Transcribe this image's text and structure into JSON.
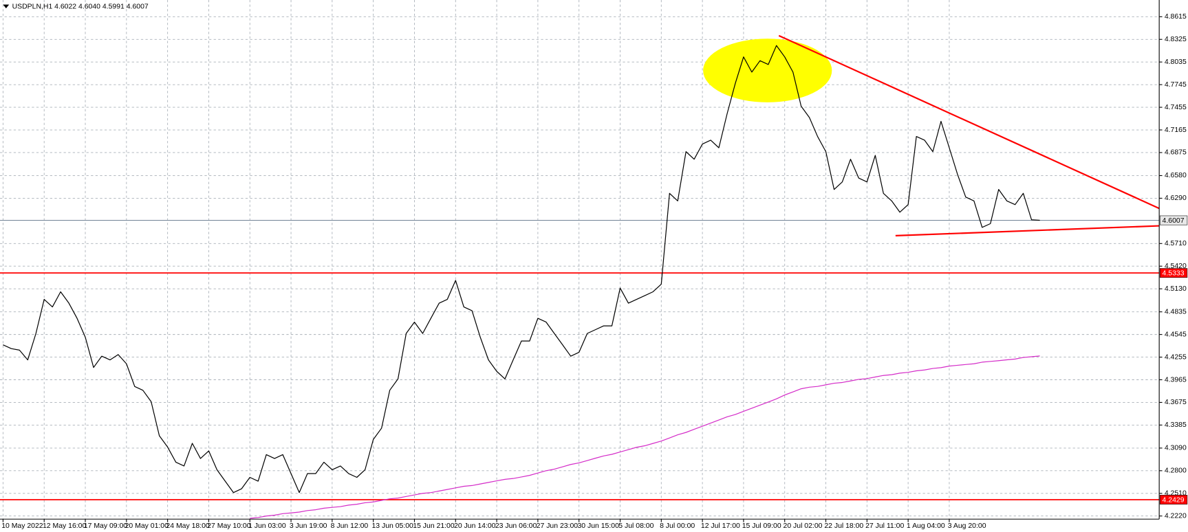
{
  "chart_data": {
    "type": "line",
    "title": "USDPLN,H1  4.6022 4.6040 4.5991 4.6007",
    "categories": [
      "10 May 2022",
      null,
      null,
      null,
      null,
      "12 May 16:00",
      null,
      null,
      null,
      null,
      "17 May 09:00",
      null,
      null,
      null,
      null,
      "20 May 01:00",
      null,
      null,
      null,
      null,
      "24 May 18:00",
      null,
      null,
      null,
      null,
      "27 May 10:00",
      null,
      null,
      null,
      null,
      "1 Jun 03:00",
      null,
      null,
      null,
      null,
      "3 Jun 19:00",
      null,
      null,
      null,
      null,
      "8 Jun 12:00",
      null,
      null,
      null,
      null,
      "13 Jun 05:00",
      null,
      null,
      null,
      null,
      "15 Jun 21:00",
      null,
      null,
      null,
      null,
      "20 Jun 14:00",
      null,
      null,
      null,
      null,
      "23 Jun 06:00",
      null,
      null,
      null,
      null,
      "27 Jun 23:00",
      null,
      null,
      null,
      null,
      "30 Jun 15:00",
      null,
      null,
      null,
      null,
      "5 Jul 08:00",
      null,
      null,
      null,
      null,
      "8 Jul 00:00",
      null,
      null,
      null,
      null,
      "12 Jul 17:00",
      null,
      null,
      null,
      null,
      "15 Jul 09:00",
      null,
      null,
      null,
      null,
      "20 Jul 02:00",
      null,
      null,
      null,
      null,
      "22 Jul 18:00",
      null,
      null,
      null,
      null,
      "27 Jul 11:00",
      null,
      null,
      null,
      null,
      "1 Aug 04:00",
      null,
      null,
      null,
      null,
      "3 Aug 20:00",
      null,
      null,
      null,
      null,
      null,
      null,
      null,
      null,
      null,
      null,
      null,
      null,
      null,
      null,
      null,
      null,
      null,
      null,
      null,
      null,
      null,
      null,
      null,
      null,
      null
    ],
    "series": [
      {
        "color": "#000000",
        "values": [
          4.4413,
          4.4364,
          4.4345,
          4.4219,
          4.4558,
          4.4995,
          4.4898,
          4.5092,
          4.4946,
          4.4752,
          4.451,
          4.4122,
          4.4267,
          4.4219,
          4.4287,
          4.417,
          4.3879,
          4.383,
          4.3685,
          4.3248,
          4.3103,
          4.2909,
          4.286,
          4.3151,
          4.2957,
          4.3054,
          4.2812,
          4.2666,
          4.252,
          4.2569,
          4.2715,
          4.2666,
          4.3006,
          4.2957,
          4.3006,
          4.2763,
          4.252,
          4.2763,
          4.2763,
          4.2909,
          4.2812,
          4.286,
          4.2763,
          4.2715,
          4.2812,
          4.32,
          4.3345,
          4.383,
          4.3976,
          4.4558,
          4.4704,
          4.4558,
          4.4752,
          4.4946,
          4.4995,
          4.5238,
          4.4898,
          4.4849,
          4.451,
          4.4219,
          4.4073,
          4.3976,
          4.4219,
          4.4461,
          4.4461,
          4.4752,
          4.4704,
          4.4558,
          4.4413,
          4.4267,
          4.4316,
          4.4558,
          4.4607,
          4.4655,
          4.4655,
          4.514,
          4.4946,
          4.4995,
          4.5043,
          4.5092,
          4.5189,
          4.6353,
          4.6256,
          4.6887,
          4.679,
          4.6984,
          4.7033,
          4.6936,
          4.7372,
          4.7761,
          4.81,
          4.7906,
          4.8052,
          4.8003,
          4.8246,
          4.81,
          4.7906,
          4.7469,
          4.7324,
          4.7081,
          4.6887,
          4.6402,
          4.6499,
          4.679,
          4.6548,
          4.6499,
          4.6839,
          4.6353,
          4.6256,
          4.6111,
          4.6208,
          4.7081,
          4.7033,
          4.6887,
          4.7275,
          4.6936,
          4.6596,
          4.6305,
          4.6256,
          4.5917,
          4.5965,
          4.6402,
          4.6256,
          4.6208,
          4.6353,
          4.6014,
          4.6007,
          null,
          null,
          null,
          null,
          null,
          null,
          null,
          null,
          null,
          null,
          null,
          null,
          null,
          null
        ]
      },
      {
        "color": "#d42bc8",
        "values": [
          null,
          null,
          null,
          null,
          null,
          null,
          null,
          null,
          null,
          null,
          null,
          null,
          null,
          null,
          null,
          null,
          null,
          null,
          null,
          null,
          null,
          null,
          null,
          null,
          null,
          null,
          null,
          null,
          null,
          null,
          4.219,
          4.22,
          4.222,
          4.223,
          4.225,
          4.226,
          4.227,
          4.229,
          4.23,
          4.232,
          4.233,
          4.234,
          4.236,
          4.237,
          4.239,
          4.24,
          4.242,
          4.244,
          4.245,
          4.247,
          4.249,
          4.251,
          4.252,
          4.254,
          4.256,
          4.258,
          4.26,
          4.261,
          4.263,
          4.265,
          4.267,
          4.269,
          4.27,
          4.272,
          4.274,
          4.277,
          4.28,
          4.282,
          4.285,
          4.288,
          4.29,
          4.293,
          4.296,
          4.299,
          4.301,
          4.304,
          4.307,
          4.31,
          4.312,
          4.315,
          4.318,
          4.322,
          4.326,
          4.329,
          4.333,
          4.337,
          4.341,
          4.345,
          4.349,
          4.352,
          4.356,
          4.36,
          4.364,
          4.368,
          4.372,
          4.377,
          4.381,
          4.385,
          4.387,
          4.388,
          4.39,
          4.392,
          4.393,
          4.395,
          4.397,
          4.398,
          4.4,
          4.402,
          4.403,
          4.405,
          4.406,
          4.408,
          4.409,
          4.411,
          4.412,
          4.414,
          4.415,
          4.416,
          4.417,
          4.419,
          4.42,
          4.421,
          4.422,
          4.423,
          4.425,
          4.426,
          4.427,
          null,
          null,
          null,
          null,
          null,
          null,
          null,
          null,
          null,
          null,
          null,
          null,
          null,
          null
        ]
      }
    ],
    "levels": [
      {
        "value": 4.5333,
        "color": "#ff0000"
      },
      {
        "value": 4.2429,
        "color": "#ff0000"
      }
    ],
    "last_price": 4.6007,
    "last_price_color": "#7a8a9c",
    "ylim": [
      4.218,
      4.88
    ],
    "yticks": [
      4.8615,
      4.8325,
      4.8035,
      4.7745,
      4.7455,
      4.7165,
      4.6875,
      {
        "value": 4.658,
        "label": "4.6580"
      },
      {
        "value": 4.629,
        "label": "4.6290"
      },
      {
        "value": 4.571,
        "label": "4.5710"
      },
      {
        "value": 4.542,
        "label": "4.5420"
      },
      {
        "value": 4.513,
        "label": "4.5130"
      },
      4.4835,
      4.4545,
      4.4255,
      4.3965,
      4.3675,
      4.3385,
      {
        "value": 4.309,
        "label": "4.3090"
      },
      {
        "value": 4.28,
        "label": "4.2800"
      },
      {
        "value": 4.251,
        "label": "4.2510"
      },
      {
        "value": 4.222,
        "label": "4.2220"
      }
    ],
    "grid": true
  }
}
